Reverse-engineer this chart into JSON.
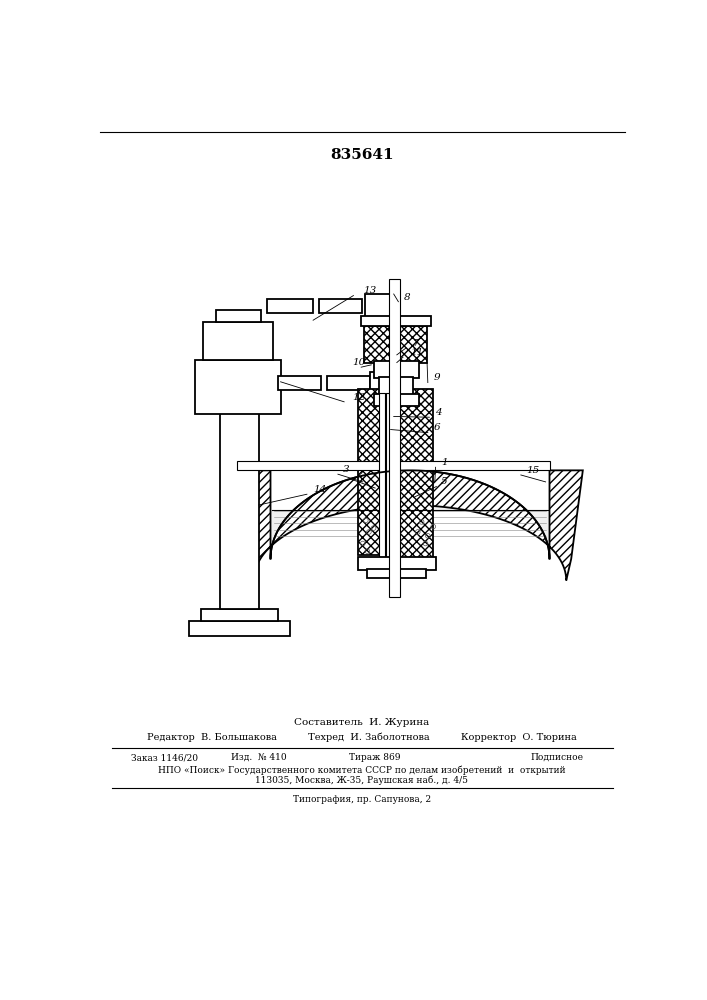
{
  "title": "835641",
  "bg_color": "#ffffff",
  "line_color": "#000000",
  "footer_lines": [
    "Составитель  И. Журина",
    "Редактор  В. Большакова          Техред  И. Заболотнова          Корректор  О. Тюрина",
    "Заказ 1146/20",
    "Изд.  № 410",
    "Тираж 869",
    "Подписное",
    "НПО «Поиск» Государственного комитета СССР по делам изобретений  и  открытий",
    "113035, Москва, Ж-35, Раушская наб., д. 4/5",
    "Типография, пр. Сапунова, 2"
  ]
}
